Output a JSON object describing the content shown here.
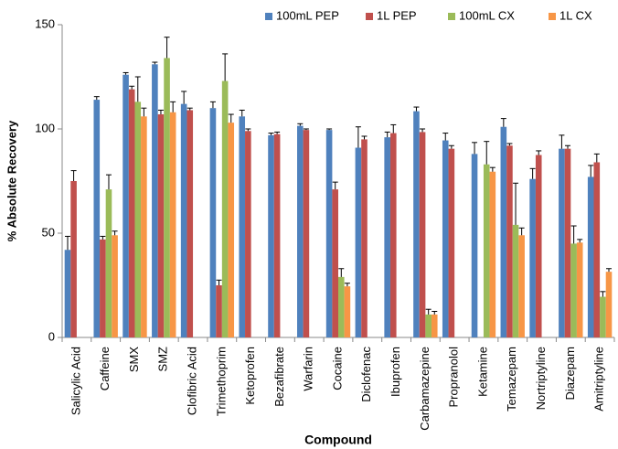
{
  "chart_data": {
    "type": "bar",
    "x_label": "Compound",
    "y_label": "% Absolute Recovery",
    "categories": [
      "Salicylic Acid",
      "Caffeine",
      "SMX",
      "SMZ",
      "Clofibric Acid",
      "Trimethoprim",
      "Ketoprofen",
      "Bezafibrate",
      "Warfarin",
      "Cocaine",
      "Diclofenac",
      "Ibuprofen",
      "Carbamazepine",
      "Propranolol",
      "Ketamine",
      "Temazepam",
      "Nortriptyline",
      "Diazepam",
      "Amitriptyline"
    ],
    "series": [
      {
        "name": "100mL PEP",
        "color": "#4f81bd",
        "values": [
          42,
          114,
          126,
          131,
          112,
          110,
          106,
          97,
          101.5,
          99.5,
          91,
          96,
          108.5,
          94.5,
          88,
          101,
          76,
          90.5,
          77
        ],
        "errors": [
          6.5,
          1.5,
          1,
          1,
          6,
          3,
          3,
          1,
          1,
          0.5,
          10,
          2.5,
          2,
          3.5,
          5.5,
          4,
          5,
          6.5,
          5.5
        ]
      },
      {
        "name": "1L PEP",
        "color": "#c0504d",
        "values": [
          75,
          47,
          119,
          107,
          109,
          25,
          99,
          97.5,
          99.5,
          71,
          95,
          98,
          98.5,
          90.5,
          null,
          92,
          87.5,
          90.5,
          84
        ],
        "errors": [
          5,
          1.5,
          1.5,
          2,
          1,
          2.5,
          1,
          1,
          0.5,
          3.5,
          1.5,
          4,
          1.5,
          1.5,
          null,
          1,
          2,
          1.5,
          4
        ]
      },
      {
        "name": "100mL CX",
        "color": "#9bbb59",
        "values": [
          null,
          71,
          113,
          134,
          null,
          123,
          null,
          null,
          null,
          29,
          null,
          null,
          11,
          null,
          83,
          54,
          null,
          45,
          19.5
        ],
        "errors": [
          null,
          7,
          12,
          10,
          null,
          13,
          null,
          null,
          null,
          4,
          null,
          null,
          2.5,
          null,
          11,
          20,
          null,
          8.5,
          2.5
        ]
      },
      {
        "name": "1L CX",
        "color": "#f79646",
        "values": [
          null,
          49,
          106,
          108,
          null,
          103,
          null,
          null,
          null,
          24.5,
          null,
          null,
          11,
          null,
          79.5,
          49,
          null,
          45.5,
          31.5
        ],
        "errors": [
          null,
          2,
          4,
          5,
          null,
          4,
          null,
          null,
          null,
          1.5,
          null,
          null,
          1.5,
          null,
          2,
          3.5,
          null,
          1.5,
          1.5
        ]
      }
    ],
    "ylim": [
      0,
      150
    ],
    "yticks": [
      0,
      50,
      100,
      150
    ],
    "legend": "top-right"
  }
}
